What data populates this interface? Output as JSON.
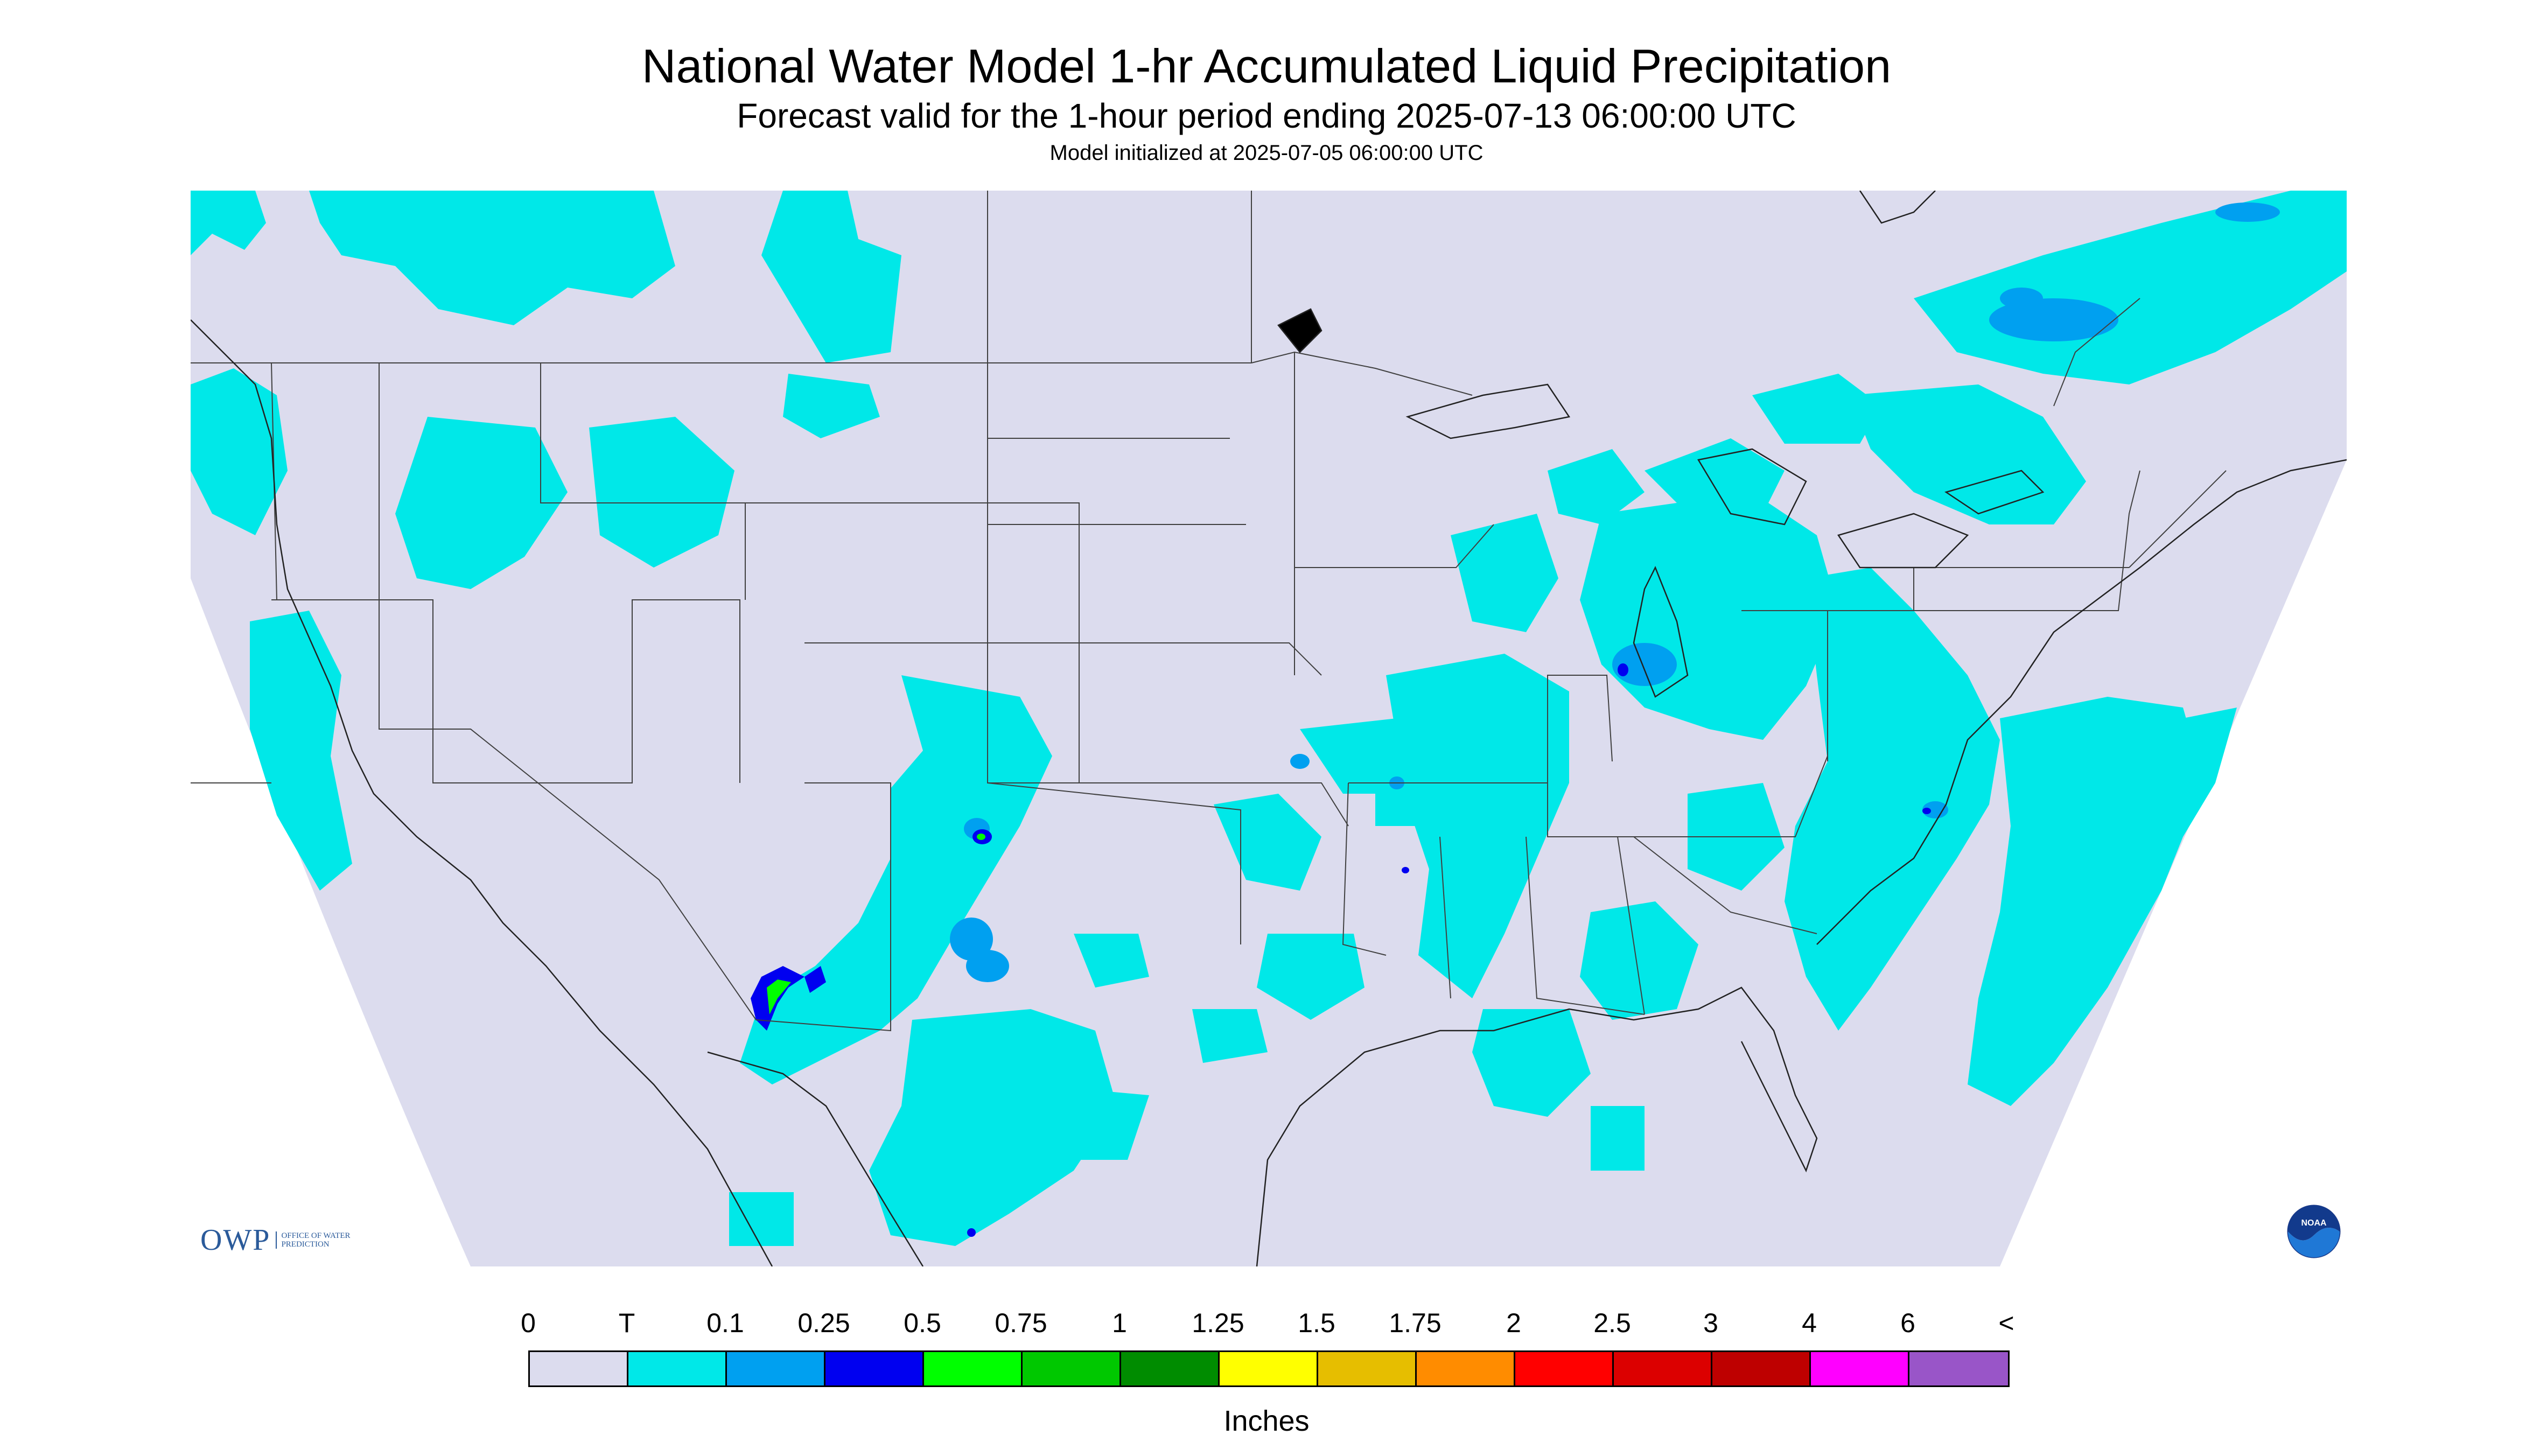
{
  "header": {
    "title": "National Water Model 1-hr Accumulated Liquid Precipitation",
    "subtitle": "Forecast valid for the 1-hour period ending 2025-07-13 06:00:00 UTC",
    "init_line": "Model initialized at 2025-07-05 06:00:00 UTC"
  },
  "legend": {
    "labels": [
      "0",
      "T",
      "0.1",
      "0.25",
      "0.5",
      "0.75",
      "1",
      "1.25",
      "1.5",
      "1.75",
      "2",
      "2.5",
      "3",
      "4",
      "6",
      "<"
    ],
    "colors": [
      "#dcdcee",
      "#00e8e8",
      "#00a0f0",
      "#0000f0",
      "#00ff00",
      "#00c800",
      "#008c00",
      "#ffff00",
      "#e6be00",
      "#ff8c00",
      "#ff0000",
      "#dc0000",
      "#be0000",
      "#ff00ff",
      "#9955c8"
    ],
    "units": "Inches"
  },
  "logos": {
    "owp_mark": "OWP",
    "owp_text": "OFFICE OF WATER PREDICTION",
    "noaa_text": "NOAA"
  },
  "colors": {
    "no_precip": "#dcdcee",
    "trace": "#00e8e8",
    "out_of_domain": "#ffffff",
    "boundaries": "#404040"
  }
}
